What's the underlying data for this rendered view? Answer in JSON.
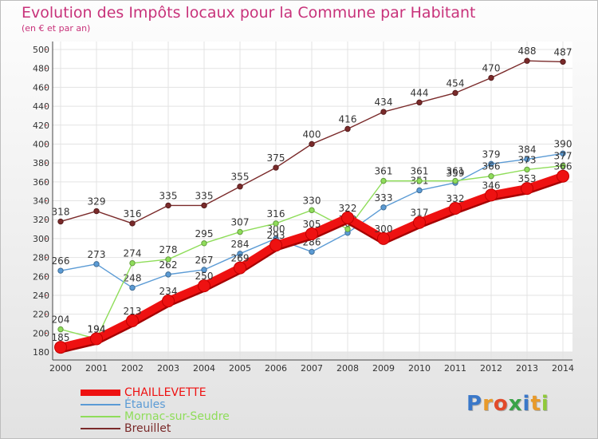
{
  "title": "Evolution des Impôts locaux pour la Commune par Habitant",
  "subtitle": "(en € et par an)",
  "chart_data": {
    "type": "line",
    "x": [
      2000,
      2001,
      2002,
      2003,
      2004,
      2005,
      2006,
      2007,
      2008,
      2009,
      2010,
      2011,
      2012,
      2013,
      2014
    ],
    "ylim": [
      180,
      500
    ],
    "yticks": [
      180,
      200,
      220,
      240,
      260,
      280,
      300,
      320,
      340,
      360,
      380,
      400,
      420,
      440,
      460,
      480,
      500
    ],
    "grid": true,
    "legend_position": "bottom-left",
    "series": [
      {
        "name": "Breuillet",
        "color": "#7a2a2a",
        "values": [
          318,
          329,
          316,
          335,
          335,
          355,
          375,
          400,
          416,
          434,
          444,
          454,
          470,
          488,
          487
        ]
      },
      {
        "name": "Étaules",
        "color": "#5b9bd5",
        "values": [
          266,
          273,
          248,
          262,
          267,
          284,
          300,
          286,
          306,
          333,
          351,
          359,
          379,
          384,
          390
        ]
      },
      {
        "name": "Mornac-sur-Seudre",
        "color": "#8fdd5a",
        "values": [
          204,
          194,
          274,
          278,
          295,
          307,
          316,
          330,
          310,
          361,
          361,
          361,
          366,
          373,
          377
        ]
      },
      {
        "name": "CHAILLEVETTE",
        "color": "#ee1111",
        "values": [
          185,
          194,
          213,
          234,
          250,
          269,
          293,
          305,
          322,
          300,
          317,
          332,
          346,
          353,
          366
        ]
      }
    ]
  },
  "logo": {
    "letters": [
      "P",
      "r",
      "o",
      "x",
      "i",
      "t",
      "i"
    ],
    "colors": [
      "#3a78c9",
      "#e89a2a",
      "#e24a2a",
      "#3aa348",
      "#3a78c9",
      "#e89a2a",
      "#8fc93a"
    ]
  }
}
